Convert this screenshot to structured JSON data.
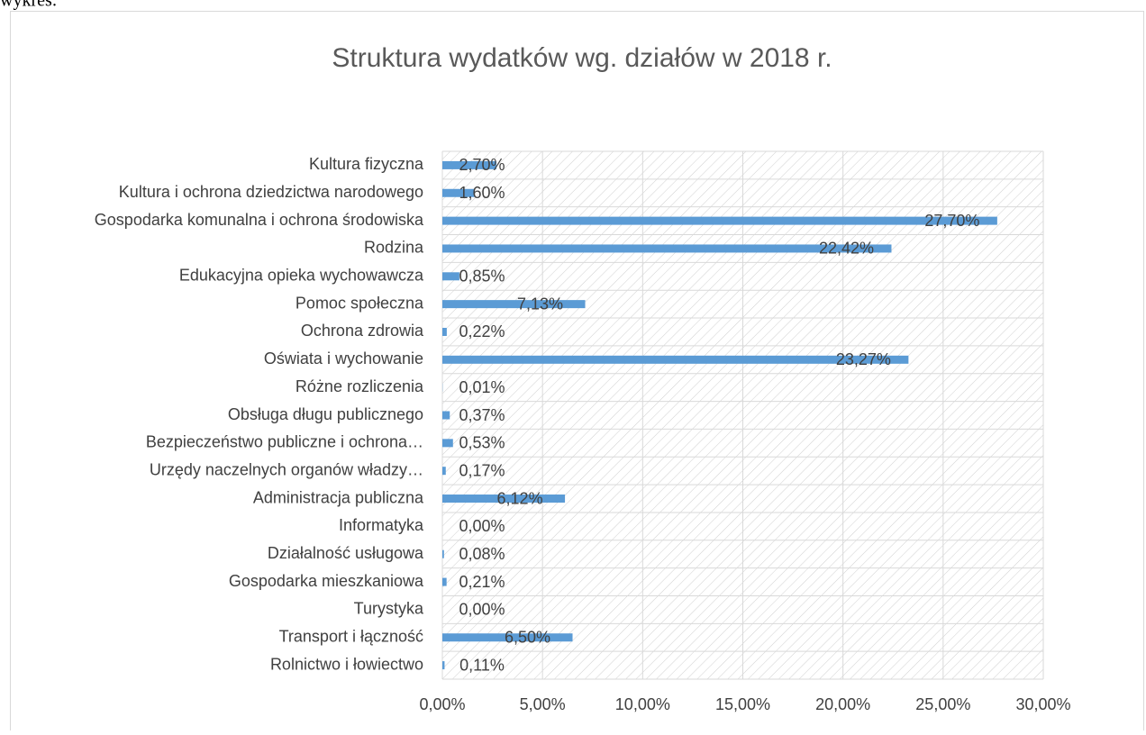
{
  "caption": "wykres:",
  "chart_data": {
    "type": "bar",
    "orientation": "horizontal",
    "title": "Struktura  wydatków wg. działów w 2018 r.",
    "categories": [
      "Kultura fizyczna",
      "Kultura i ochrona dziedzictwa narodowego",
      "Gospodarka komunalna i ochrona środowiska",
      "Rodzina",
      "Edukacyjna opieka wychowawcza",
      "Pomoc społeczna",
      "Ochrona zdrowia",
      "Oświata i wychowanie",
      "Różne rozliczenia",
      "Obsługa długu publicznego",
      "Bezpieczeństwo publiczne i ochrona…",
      "Urzędy naczelnych organów władzy…",
      "Administracja publiczna",
      "Informatyka",
      "Działalność usługowa",
      "Gospodarka mieszkaniowa",
      "Turystyka",
      "Transport i łączność",
      "Rolnictwo i łowiectwo"
    ],
    "values": [
      2.7,
      1.6,
      27.7,
      22.42,
      0.85,
      7.13,
      0.22,
      23.27,
      0.01,
      0.37,
      0.53,
      0.17,
      6.12,
      0.0,
      0.08,
      0.21,
      0.0,
      6.5,
      0.11
    ],
    "value_labels": [
      "2,70%",
      "1,60%",
      "27,70%",
      "22,42%",
      "0,85%",
      "7,13%",
      "0,22%",
      "23,27%",
      "0,01%",
      "0,37%",
      "0,53%",
      "0,17%",
      "6,12%",
      "0,00%",
      "0,08%",
      "0,21%",
      "0,00%",
      "6,50%",
      "0,11%"
    ],
    "color": "#5b9bd5",
    "xlim": [
      0,
      30
    ],
    "xticks": [
      {
        "value": 0,
        "label": "0,00%"
      },
      {
        "value": 5,
        "label": "5,00%"
      },
      {
        "value": 10,
        "label": "10,00%"
      },
      {
        "value": 15,
        "label": "15,00%"
      },
      {
        "value": 20,
        "label": "20,00%"
      },
      {
        "value": 25,
        "label": "25,00%"
      },
      {
        "value": 30,
        "label": "30,00%"
      }
    ],
    "grid": true
  }
}
